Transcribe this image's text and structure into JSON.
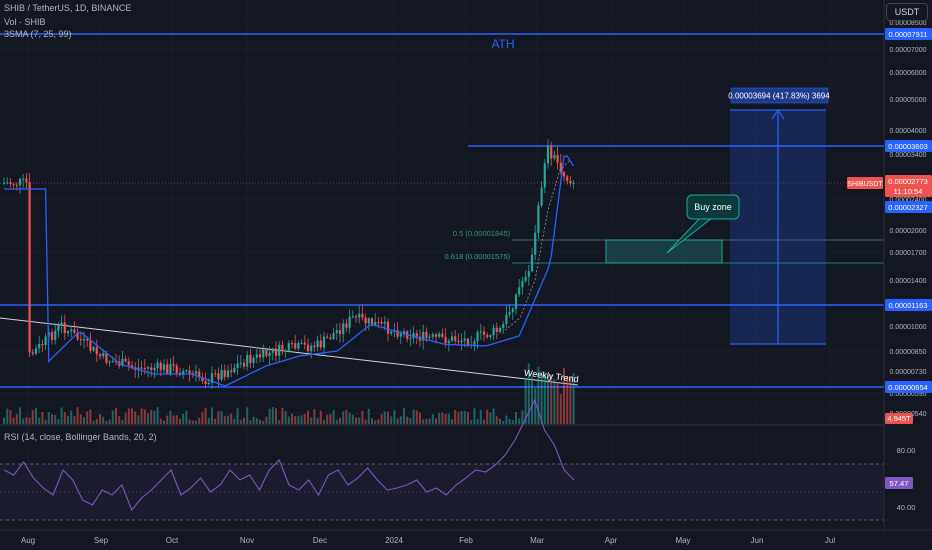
{
  "header": {
    "symbol_line": "SHIB / TetherUS, 1D, BINANCE",
    "vol_line": "Vol · SHIB",
    "sma_line": "3SMA (7, 25, 99)",
    "currency_button": "USDT"
  },
  "rsi_panel": {
    "label": "RSI (14, close, Bollinger Bands, 20, 2)",
    "current_value": "57.47",
    "ticks": [
      "80.00",
      "40.00"
    ],
    "upper_band": 70,
    "lower_band": 30
  },
  "annotations": {
    "ath": "ATH",
    "buy_zone": "Buy zone",
    "weekly_trend": "Weekly Trend",
    "fib_05": "0.5 (0.00001845)",
    "fib_0618": "0.618 (0.00001575)",
    "measure": "0.00003694 (417.83%) 3694"
  },
  "price_tags": {
    "ath": "0.00007911",
    "resistance": "0.00003603",
    "last_price": "0.00002773",
    "timer": "11:10:54",
    "symbol_tag": "SHIBUSDT",
    "ma": "0.00002327",
    "support_mid": "0.00001163",
    "support_low": "0.00000654",
    "vol_tag": "4.945T"
  },
  "colors": {
    "background": "#131722",
    "up": "#26a69a",
    "down": "#ef5350",
    "ma": "#2962ff",
    "horizontal_lines": "#2962ff",
    "rsi": "#7e57c2",
    "grid": "#1e222d"
  },
  "chart_data": {
    "type": "candlestick",
    "title": "SHIB / TetherUS, 1D, BINANCE",
    "x_ticks": [
      "Aug",
      "Sep",
      "Oct",
      "Nov",
      "Dec",
      "2024",
      "Feb",
      "Mar",
      "Apr",
      "May",
      "Jun",
      "Jul"
    ],
    "y_ticks": [
      "0.00008500",
      "0.00007000",
      "0.00006000",
      "0.00005000",
      "0.00004000",
      "0.00003400",
      "0.00002400",
      "0.00002000",
      "0.00001700",
      "0.00001400",
      "0.00001000",
      "0.00000850",
      "0.00000730",
      "0.00000590",
      "0.00000540"
    ],
    "scale": "log",
    "ylim": [
      5.5e-06,
      8.5e-06
    ],
    "series_close_approx": [
      {
        "date": "2023-08-01",
        "close": 7.8e-06
      },
      {
        "date": "2023-08-15",
        "close": 1.04e-05
      },
      {
        "date": "2023-09-01",
        "close": 7.8e-06
      },
      {
        "date": "2023-09-15",
        "close": 7.2e-06
      },
      {
        "date": "2023-10-01",
        "close": 7.2e-06
      },
      {
        "date": "2023-10-15",
        "close": 6.6e-06
      },
      {
        "date": "2023-11-01",
        "close": 7.6e-06
      },
      {
        "date": "2023-11-15",
        "close": 8.8e-06
      },
      {
        "date": "2023-12-01",
        "close": 9.2e-06
      },
      {
        "date": "2023-12-15",
        "close": 1.1e-05
      },
      {
        "date": "2024-01-01",
        "close": 1e-05
      },
      {
        "date": "2024-01-15",
        "close": 9.5e-06
      },
      {
        "date": "2024-02-01",
        "close": 9.4e-06
      },
      {
        "date": "2024-02-15",
        "close": 1e-05
      },
      {
        "date": "2024-02-28",
        "close": 1.4e-05
      },
      {
        "date": "2024-03-05",
        "close": 3.6e-05
      },
      {
        "date": "2024-03-15",
        "close": 2.77e-05
      }
    ],
    "horizontal_levels": [
      7.911e-05,
      3.603e-05,
      1.163e-05,
      6.54e-06
    ],
    "fib_levels": [
      1.845e-05,
      1.575e-05
    ],
    "legend": "none"
  }
}
